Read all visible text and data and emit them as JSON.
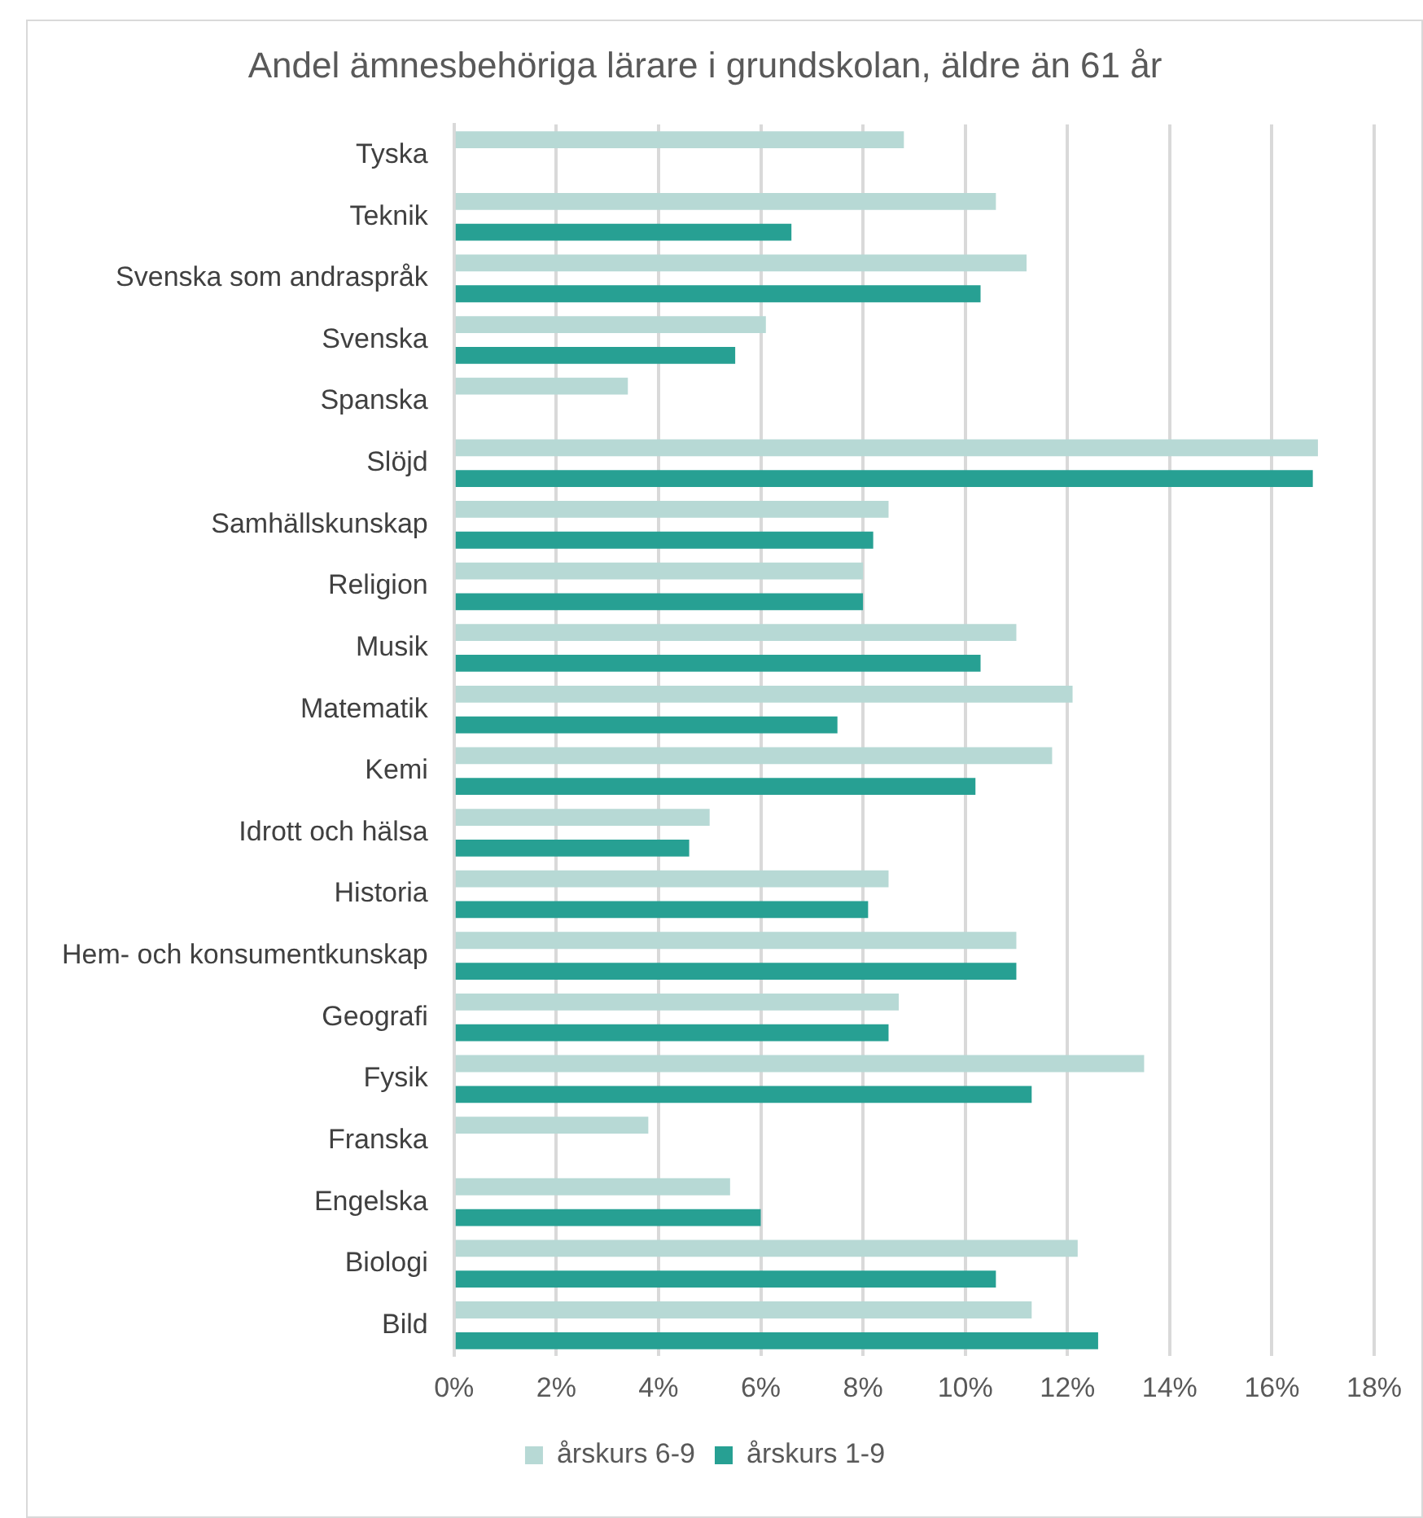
{
  "chart_data": {
    "type": "bar",
    "orientation": "horizontal",
    "title": "Andel ämnesbehöriga lärare i grundskolan, äldre än 61 år",
    "categories": [
      "Tyska",
      "Teknik",
      "Svenska som andraspråk",
      "Svenska",
      "Spanska",
      "Slöjd",
      "Samhällskunskap",
      "Religion",
      "Musik",
      "Matematik",
      "Kemi",
      "Idrott och hälsa",
      "Historia",
      "Hem- och konsumentkunskap",
      "Geografi",
      "Fysik",
      "Franska",
      "Engelska",
      "Biologi",
      "Bild"
    ],
    "series": [
      {
        "name": "årskurs 6-9",
        "color": "#b7d9d5",
        "values": [
          8.8,
          10.6,
          11.2,
          6.1,
          3.4,
          16.9,
          8.5,
          8.0,
          11.0,
          12.1,
          11.7,
          5.0,
          8.5,
          11.0,
          8.7,
          13.5,
          3.8,
          5.4,
          12.2,
          11.3
        ]
      },
      {
        "name": "årskurs 1-9",
        "color": "#27a093",
        "values": [
          null,
          6.6,
          10.3,
          5.5,
          null,
          16.8,
          8.2,
          8.0,
          10.3,
          7.5,
          10.2,
          4.6,
          8.1,
          11.0,
          8.5,
          11.3,
          null,
          6.0,
          10.6,
          12.6
        ]
      }
    ],
    "xlim": [
      0,
      18
    ],
    "xticks": [
      {
        "value": 0,
        "label": "0%"
      },
      {
        "value": 2,
        "label": "2%"
      },
      {
        "value": 4,
        "label": "4%"
      },
      {
        "value": 6,
        "label": "6%"
      },
      {
        "value": 8,
        "label": "8%"
      },
      {
        "value": 10,
        "label": "10%"
      },
      {
        "value": 12,
        "label": "12%"
      },
      {
        "value": 14,
        "label": "14%"
      },
      {
        "value": 16,
        "label": "16%"
      },
      {
        "value": 18,
        "label": "18%"
      }
    ],
    "grid": "x",
    "legend": "bottom"
  }
}
